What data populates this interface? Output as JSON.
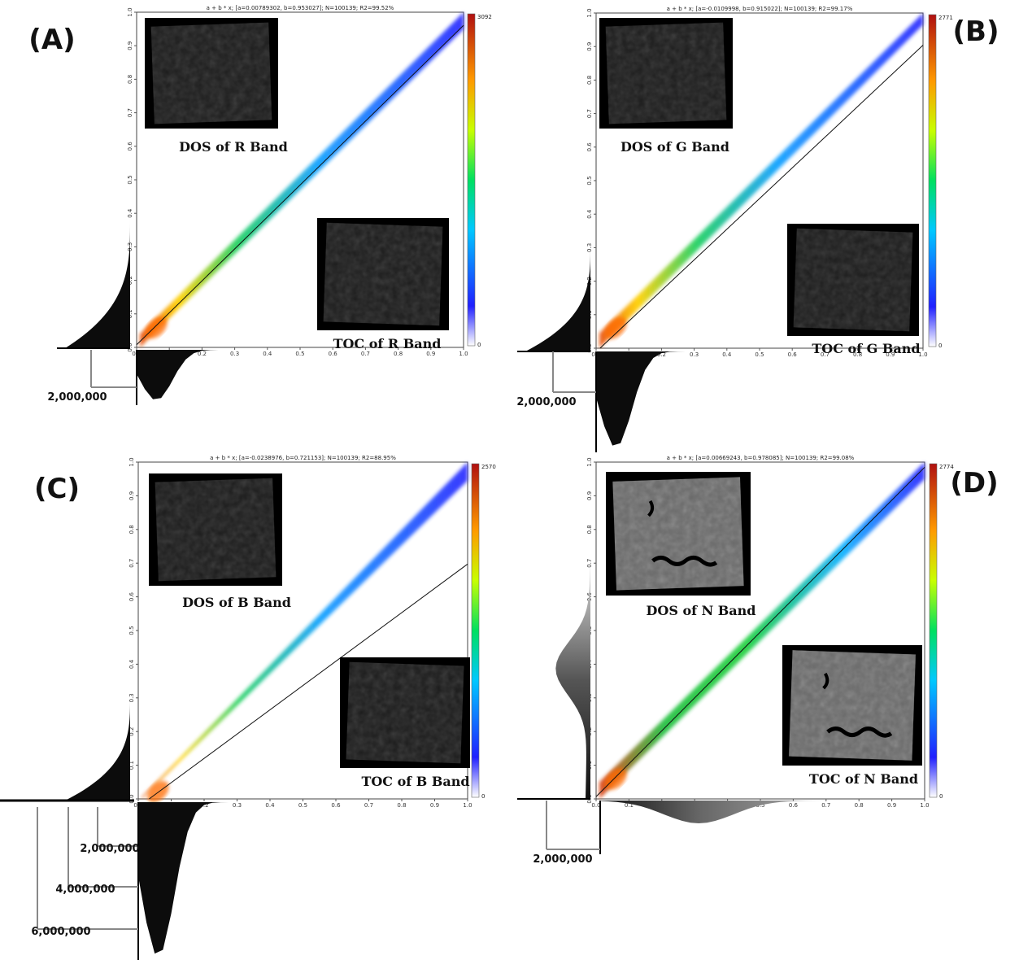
{
  "chart_data": [
    {
      "type": "heatmap",
      "panel_label": "(A)",
      "fit_title": "a + b * x; [a=0.00789302, b=0.953027]; N=100139; R2=99.52%",
      "fit": {
        "a": 0.00789302,
        "b": 0.953027,
        "N": 100139,
        "R2": "99.52%"
      },
      "colorbar": {
        "max": "3092",
        "min": "0"
      },
      "xlim": [
        0,
        1
      ],
      "ylim": [
        0,
        1
      ],
      "xticks": [
        "0.0",
        "0.1",
        "0.2",
        "0.3",
        "0.4",
        "0.5",
        "0.6",
        "0.7",
        "0.8",
        "0.9",
        "1.0"
      ],
      "yticks": [
        "0.0",
        "0.1",
        "0.2",
        "0.3",
        "0.4",
        "0.5",
        "0.6",
        "0.7",
        "0.8",
        "0.9",
        "1.0"
      ],
      "density_band": {
        "slope": 0.98,
        "intercept": 0.0,
        "halfwidth": 0.03
      },
      "insets": {
        "top": "DOS of R Band",
        "bottom": "TOC of R Band",
        "tone": "dark"
      },
      "hist_label": "2,000,000"
    },
    {
      "type": "heatmap",
      "panel_label": "(B)",
      "fit_title": "a + b * x; [a=-0.0109998, b=0.915022]; N=100139; R2=99.17%",
      "fit": {
        "a": -0.0109998,
        "b": 0.915022,
        "N": 100139,
        "R2": "99.17%"
      },
      "colorbar": {
        "max": "2771",
        "min": "0"
      },
      "xlim": [
        0,
        1
      ],
      "ylim": [
        0,
        1
      ],
      "xticks": [
        "0.0",
        "0.1",
        "0.2",
        "0.3",
        "0.4",
        "0.5",
        "0.6",
        "0.7",
        "0.8",
        "0.9",
        "1.0"
      ],
      "yticks": [
        "0.0",
        "0.1",
        "0.2",
        "0.3",
        "0.4",
        "0.5",
        "0.6",
        "0.7",
        "0.8",
        "0.9",
        "1.0"
      ],
      "density_band": {
        "slope": 1.0,
        "intercept": 0.0,
        "halfwidth": 0.035
      },
      "insets": {
        "top": "DOS of G Band",
        "bottom": "TOC of G Band",
        "tone": "dark"
      },
      "hist_label": "2,000,000"
    },
    {
      "type": "heatmap",
      "panel_label": "(C)",
      "fit_title": "a + b * x; [a=-0.0238976, b=0.721153]; N=100139; R2=88.95%",
      "fit": {
        "a": -0.0238976,
        "b": 0.721153,
        "N": 100139,
        "R2": "88.95%"
      },
      "colorbar": {
        "max": "2570",
        "min": "0"
      },
      "xlim": [
        0,
        1
      ],
      "ylim": [
        0,
        1
      ],
      "xticks": [
        "0.0",
        "0.1",
        "0.2",
        "0.3",
        "0.4",
        "0.5",
        "0.6",
        "0.7",
        "0.8",
        "0.9",
        "1.0"
      ],
      "yticks": [
        "0.0",
        "0.1",
        "0.2",
        "0.3",
        "0.4",
        "0.5",
        "0.6",
        "0.7",
        "0.8",
        "0.9",
        "1.0"
      ],
      "density_band": {
        "slope": 1.02,
        "intercept": -0.04,
        "halfwidth": 0.035
      },
      "insets": {
        "top": "DOS of B Band",
        "bottom": "TOC of B Band",
        "tone": "dark"
      },
      "hist_labels": [
        "2,000,000",
        "4,000,000",
        "6,000,000"
      ]
    },
    {
      "type": "heatmap",
      "panel_label": "(D)",
      "fit_title": "a + b * x; [a=0.00669243, b=0.978085]; N=100139; R2=99.08%",
      "fit": {
        "a": 0.00669243,
        "b": 0.978085,
        "N": 100139,
        "R2": "99.08%"
      },
      "colorbar": {
        "max": "2774",
        "min": "0"
      },
      "xlim": [
        0,
        1
      ],
      "ylim": [
        0,
        1
      ],
      "xticks": [
        "0.0",
        "0.1",
        "0.2",
        "0.3",
        "0.4",
        "0.5",
        "0.6",
        "0.7",
        "0.8",
        "0.9",
        "1.0"
      ],
      "yticks": [
        "0.0",
        "0.1",
        "0.2",
        "0.3",
        "0.4",
        "0.5",
        "0.6",
        "0.7",
        "0.8",
        "0.9",
        "1.0"
      ],
      "density_band": {
        "slope": 0.99,
        "intercept": 0.0,
        "halfwidth": 0.04
      },
      "insets": {
        "top": "DOS of N Band",
        "bottom": "TOC of N Band",
        "tone": "grey"
      },
      "hist_label": "2,000,000"
    }
  ]
}
